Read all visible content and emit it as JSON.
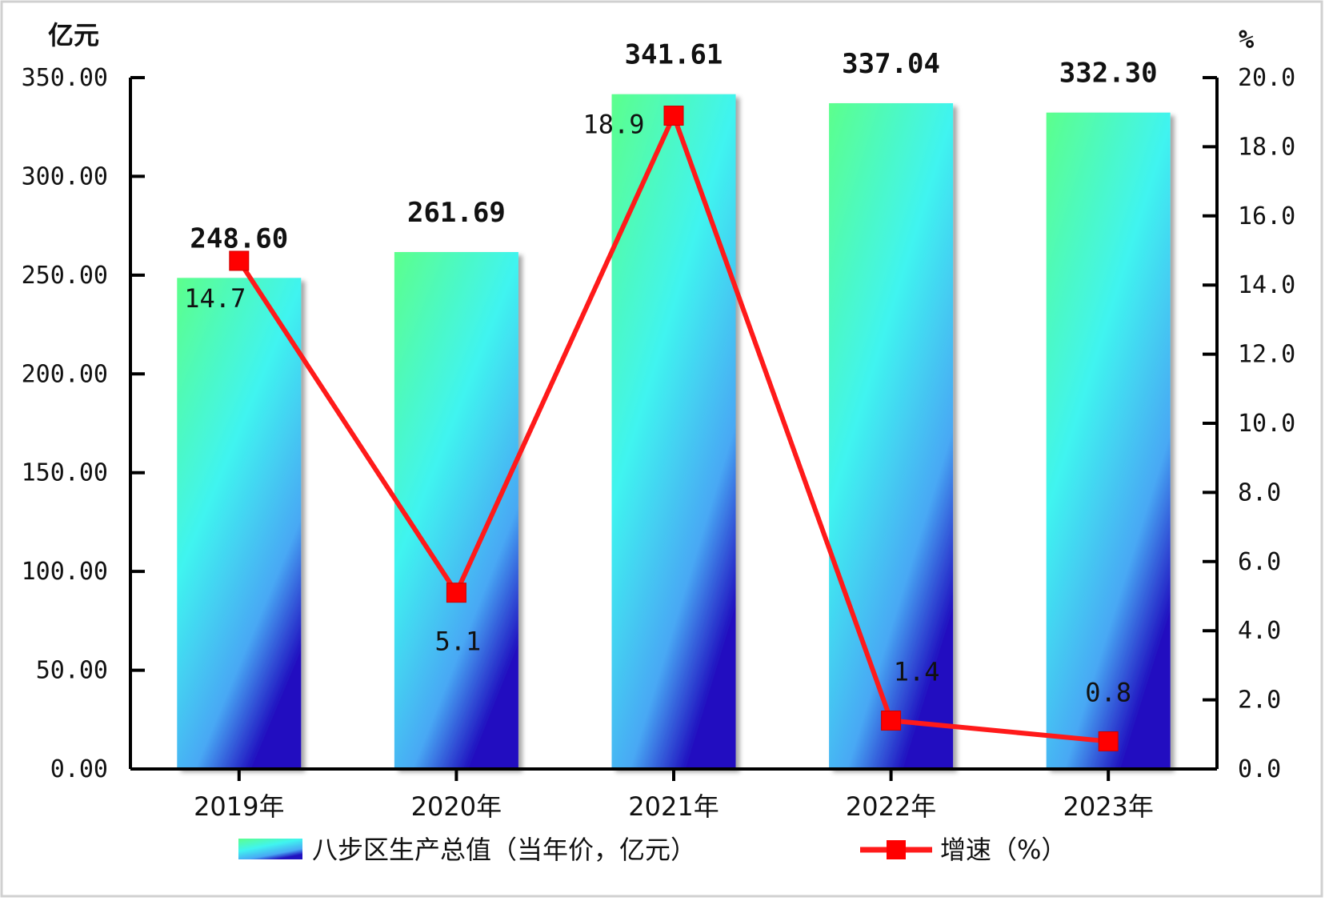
{
  "chart_data": {
    "type": "bar+line",
    "categories": [
      "2019年",
      "2020年",
      "2021年",
      "2022年",
      "2023年"
    ],
    "series": [
      {
        "name": "八步区生产总值（当年价，亿元）",
        "type": "bar",
        "axis": "left",
        "values": [
          248.6,
          261.69,
          341.61,
          337.04,
          332.3
        ],
        "labels": [
          "248.60",
          "261.69",
          "341.61",
          "337.04",
          "332.30"
        ]
      },
      {
        "name": "增速（%）",
        "type": "line",
        "axis": "right",
        "values": [
          14.7,
          5.1,
          18.9,
          1.4,
          0.8
        ],
        "labels": [
          "14.7",
          "5.1",
          "18.9",
          "1.4",
          "0.8"
        ]
      }
    ],
    "left_axis": {
      "unit": "亿元",
      "ylim": [
        0,
        350
      ],
      "ticks": [
        "0.00",
        "50.00",
        "100.00",
        "150.00",
        "200.00",
        "250.00",
        "300.00",
        "350.00"
      ]
    },
    "right_axis": {
      "unit": "%",
      "ylim": [
        0,
        20
      ],
      "ticks": [
        "0.0",
        "2.0",
        "4.0",
        "6.0",
        "8.0",
        "10.0",
        "12.0",
        "14.0",
        "16.0",
        "18.0",
        "20.0"
      ]
    },
    "legend_position": "bottom",
    "grid": false,
    "colors": {
      "bar_top": "#5cff8c",
      "bar_mid": "#40f0f0",
      "bar_bottom": "#2010c0",
      "line": "#ff1a1a"
    }
  }
}
